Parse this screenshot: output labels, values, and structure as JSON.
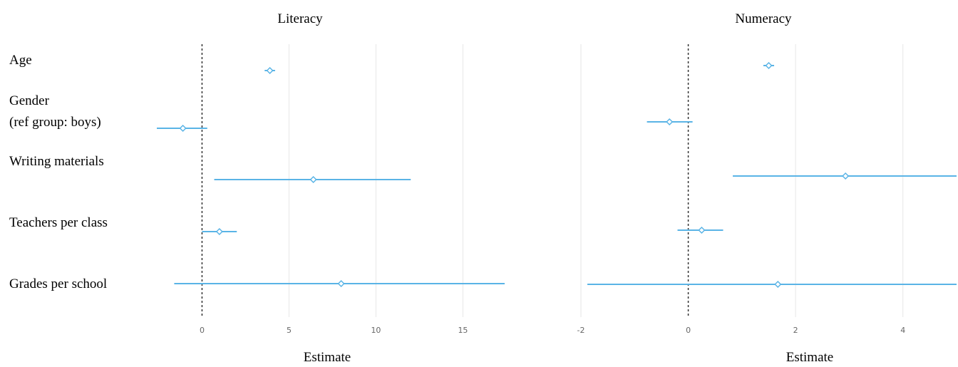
{
  "row_labels": [
    [
      "Age"
    ],
    [
      "Gender",
      "(ref group: boys)"
    ],
    [
      "Writing materials"
    ],
    [
      "Teachers per class"
    ],
    [
      "Grades per school"
    ]
  ],
  "chart_data": [
    {
      "type": "scatter",
      "subtype": "coefficient-plot",
      "title": "Literacy",
      "xlabel": "Estimate",
      "xlim": [
        -2.6,
        17.4
      ],
      "xticks": [
        0,
        5,
        10,
        15
      ],
      "reference_line": 0,
      "grid": "vertical",
      "color": "#5ab4e6",
      "categories": [
        "Age",
        "Gender (ref group: boys)",
        "Writing materials",
        "Teachers per class",
        "Grades per school"
      ],
      "estimates": [
        3.9,
        -1.1,
        6.4,
        1.0,
        8.0
      ],
      "ci_low": [
        3.6,
        -2.6,
        0.7,
        0.0,
        -1.6
      ],
      "ci_high": [
        4.2,
        0.3,
        12.0,
        2.0,
        17.4
      ]
    },
    {
      "type": "scatter",
      "subtype": "coefficient-plot",
      "title": "Numeracy",
      "xlabel": "Estimate",
      "xlim": [
        -2.0,
        5.0
      ],
      "xticks": [
        -2,
        0,
        2,
        4
      ],
      "reference_line": 0,
      "grid": "vertical",
      "color": "#5ab4e6",
      "categories": [
        "Age",
        "Gender (ref group: boys)",
        "Writing materials",
        "Teachers per class",
        "Grades per school"
      ],
      "estimates": [
        1.5,
        -0.35,
        2.93,
        0.25,
        1.67
      ],
      "ci_low": [
        1.4,
        -0.77,
        0.83,
        -0.2,
        -1.88
      ],
      "ci_high": [
        1.6,
        0.08,
        5.0,
        0.65,
        5.0
      ]
    }
  ]
}
